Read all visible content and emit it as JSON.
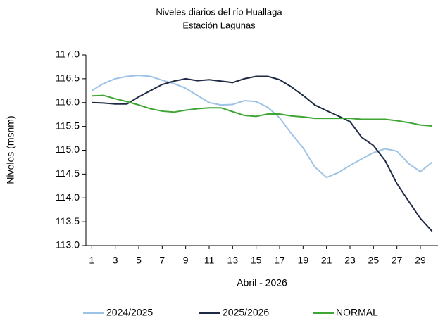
{
  "chart_data": {
    "type": "line",
    "title": "Niveles diarios del río Huallaga",
    "subtitle": "Estación Lagunas",
    "x_label": "Abril - 2026",
    "y_label": "Niveles (msnm)",
    "x": [
      1,
      2,
      3,
      4,
      5,
      6,
      7,
      8,
      9,
      10,
      11,
      12,
      13,
      14,
      15,
      16,
      17,
      18,
      19,
      20,
      21,
      22,
      23,
      24,
      25,
      26,
      27,
      28,
      29,
      30
    ],
    "xlim": [
      0.5,
      30.5
    ],
    "xticks": [
      1,
      3,
      5,
      7,
      9,
      11,
      13,
      15,
      17,
      19,
      21,
      23,
      25,
      27,
      29
    ],
    "ylim": [
      113,
      117
    ],
    "yticks": [
      {
        "value": 113,
        "label": "113.0"
      },
      {
        "value": 113.5,
        "label": "113.5"
      },
      {
        "value": 114,
        "label": "114.0"
      },
      {
        "value": 114.5,
        "label": "114.5"
      },
      {
        "value": 115,
        "label": "115.0"
      },
      {
        "value": 115.5,
        "label": "115.5"
      },
      {
        "value": 116,
        "label": "116.0"
      },
      {
        "value": 116.5,
        "label": "116.5"
      },
      {
        "value": 117,
        "label": "117.0"
      }
    ],
    "grid": false,
    "legend": "bottom",
    "series": [
      {
        "name": "2024/2025",
        "color": "#9dc3e6",
        "values": [
          116.25,
          116.4,
          116.5,
          116.55,
          116.57,
          116.55,
          116.47,
          116.4,
          116.3,
          116.15,
          116.0,
          115.95,
          115.96,
          116.04,
          116.02,
          115.9,
          115.68,
          115.35,
          115.05,
          114.65,
          114.43,
          114.53,
          114.68,
          114.82,
          114.95,
          115.03,
          114.98,
          114.72,
          114.55,
          114.75
        ]
      },
      {
        "name": "2025/2026",
        "color": "#1f2a44",
        "values": [
          116.0,
          115.99,
          115.97,
          115.97,
          116.12,
          116.25,
          116.38,
          116.45,
          116.5,
          116.46,
          116.48,
          116.45,
          116.42,
          116.5,
          116.55,
          116.55,
          116.48,
          116.33,
          116.15,
          115.95,
          115.83,
          115.72,
          115.6,
          115.27,
          115.1,
          114.78,
          114.3,
          113.93,
          113.57,
          113.3
        ]
      },
      {
        "name": "NORMAL",
        "color": "#3fa535",
        "values": [
          116.14,
          116.15,
          116.08,
          116.02,
          115.95,
          115.87,
          115.82,
          115.8,
          115.84,
          115.87,
          115.89,
          115.89,
          115.81,
          115.73,
          115.71,
          115.76,
          115.76,
          115.72,
          115.7,
          115.67,
          115.67,
          115.67,
          115.67,
          115.65,
          115.65,
          115.65,
          115.62,
          115.58,
          115.53,
          115.51
        ]
      }
    ]
  }
}
